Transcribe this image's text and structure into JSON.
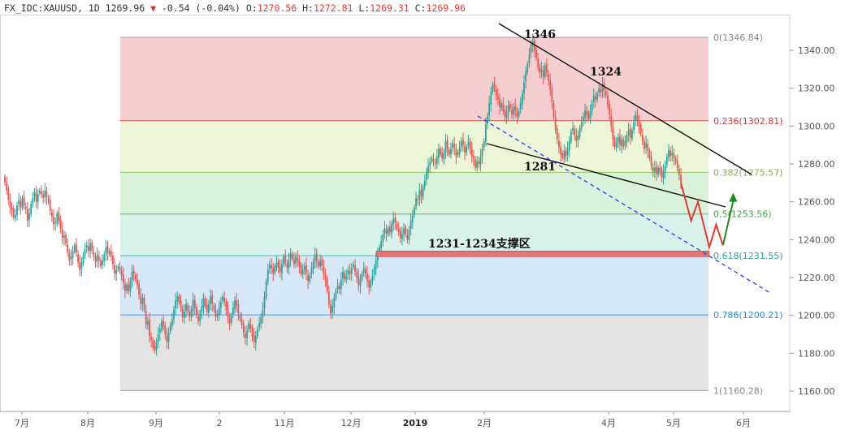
{
  "header": {
    "symbol": "FX_IDC:XAUUSD",
    "interval": "1D",
    "last": "1269.96",
    "change_icon": "down-triangle-icon",
    "change": "-0.54 (-0.04%)",
    "open_label": "O:",
    "open": "1270.56",
    "high_label": "H:",
    "high": "1272.81",
    "low_label": "L:",
    "low": "1269.31",
    "close_label": "C:",
    "close": "1269.96"
  },
  "chart_data": {
    "type": "candlestick",
    "ylim": [
      1150,
      1350
    ],
    "y_ticks": [
      1160,
      1180,
      1200,
      1220,
      1240,
      1260,
      1280,
      1300,
      1320,
      1340
    ],
    "y_tick_labels": [
      "1160.00",
      "1180.00",
      "1200.00",
      "1220.00",
      "1240.00",
      "1260.00",
      "1280.00",
      "1300.00",
      "1320.00",
      "1340.00"
    ],
    "x_tick_labels": [
      "7月",
      "8月",
      "9月",
      "2",
      "11月",
      "12月",
      "2019",
      "2月",
      "4月",
      "5月",
      "6月"
    ],
    "colors": {
      "up": "#26a69a",
      "down": "#ef5350",
      "forecast_down": "#e53935",
      "forecast_up": "#1b8a1b",
      "support": "#e57373"
    },
    "fibonacci": [
      {
        "level": "0",
        "price": 1346.84,
        "label": "0(1346.84)",
        "color": "#888888",
        "zone": "#f5cfcf"
      },
      {
        "level": "0.236",
        "price": 1302.81,
        "label": "0.236(1302.81)",
        "color": "#d32f2f",
        "zone": "#edf5d7"
      },
      {
        "level": "0.382",
        "price": 1275.57,
        "label": "0.382(1275.57)",
        "color": "#7cb342",
        "zone": "#d9f2d9"
      },
      {
        "level": "0.5",
        "price": 1253.56,
        "label": "0.5(1253.56)",
        "color": "#43a047",
        "zone": "#d9f2ec"
      },
      {
        "level": "0.618",
        "price": 1231.55,
        "label": "0.618(1231.55)",
        "color": "#26a69a",
        "zone": "#d6e8f5"
      },
      {
        "level": "0.786",
        "price": 1200.21,
        "label": "0.786(1200.21)",
        "color": "#1e88e5",
        "zone": "#e3e3e3"
      },
      {
        "level": "1",
        "price": 1160.28,
        "label": "1(1160.28)",
        "color": "#888888",
        "zone": null
      }
    ],
    "annotations": [
      {
        "text": "1346",
        "price": 1346
      },
      {
        "text": "1324",
        "price": 1324
      },
      {
        "text": "1281",
        "price": 1281
      },
      {
        "text": "1231-1234支撑区",
        "price": 1233
      }
    ],
    "support_zone": [
      1231,
      1234
    ],
    "closes": [
      1270,
      1266,
      1261,
      1257,
      1256,
      1252,
      1253,
      1258,
      1261,
      1257,
      1262,
      1258,
      1256,
      1250,
      1254,
      1259,
      1262,
      1265,
      1260,
      1264,
      1266,
      1264,
      1262,
      1266,
      1262,
      1260,
      1255,
      1252,
      1248,
      1249,
      1254,
      1250,
      1246,
      1241,
      1242,
      1238,
      1233,
      1229,
      1231,
      1234,
      1237,
      1233,
      1228,
      1224,
      1228,
      1232,
      1235,
      1237,
      1234,
      1238,
      1234,
      1231,
      1228,
      1232,
      1229,
      1226,
      1229,
      1232,
      1236,
      1233,
      1234,
      1231,
      1227,
      1222,
      1224,
      1226,
      1224,
      1221,
      1217,
      1213,
      1216,
      1213,
      1218,
      1223,
      1222,
      1219,
      1216,
      1211,
      1206,
      1209,
      1203,
      1195,
      1197,
      1189,
      1187,
      1183,
      1182,
      1186,
      1190,
      1193,
      1197,
      1194,
      1190,
      1186,
      1191,
      1195,
      1198,
      1203,
      1208,
      1210,
      1207,
      1204,
      1199,
      1202,
      1206,
      1202,
      1199,
      1203,
      1208,
      1204,
      1200,
      1197,
      1201,
      1205,
      1209,
      1205,
      1202,
      1206,
      1210,
      1206,
      1203,
      1199,
      1201,
      1204,
      1207,
      1210,
      1207,
      1203,
      1199,
      1196,
      1200,
      1204,
      1208,
      1205,
      1201,
      1198,
      1195,
      1191,
      1188,
      1192,
      1196,
      1193,
      1189,
      1186,
      1189,
      1193,
      1196,
      1199,
      1203,
      1210,
      1218,
      1224,
      1227,
      1225,
      1222,
      1226,
      1228,
      1225,
      1223,
      1227,
      1231,
      1228,
      1225,
      1229,
      1233,
      1230,
      1227,
      1231,
      1229,
      1226,
      1222,
      1224,
      1226,
      1222,
      1218,
      1221,
      1225,
      1228,
      1232,
      1229,
      1226,
      1229,
      1226,
      1222,
      1219,
      1213,
      1206,
      1201,
      1205,
      1209,
      1213,
      1216,
      1214,
      1219,
      1223,
      1219,
      1221,
      1224,
      1222,
      1225,
      1227,
      1223,
      1220,
      1216,
      1219,
      1222,
      1225,
      1222,
      1218,
      1215,
      1218,
      1221,
      1225,
      1229,
      1233,
      1236,
      1239,
      1243,
      1246,
      1243,
      1246,
      1244,
      1248,
      1251,
      1249,
      1246,
      1244,
      1241,
      1243,
      1246,
      1243,
      1240,
      1245,
      1250,
      1253,
      1257,
      1262,
      1261,
      1266,
      1263,
      1268,
      1271,
      1276,
      1279,
      1281,
      1283,
      1281,
      1280,
      1284,
      1288,
      1285,
      1283,
      1286,
      1292,
      1288,
      1285,
      1288,
      1291,
      1288,
      1284,
      1286,
      1289,
      1292,
      1290,
      1286,
      1289,
      1292,
      1288,
      1284,
      1283,
      1278,
      1281,
      1280,
      1284,
      1288,
      1292,
      1301,
      1305,
      1312,
      1318,
      1322,
      1320,
      1316,
      1314,
      1310,
      1312,
      1308,
      1305,
      1307,
      1311,
      1309,
      1306,
      1310,
      1308,
      1305,
      1308,
      1312,
      1317,
      1323,
      1329,
      1333,
      1338,
      1343,
      1345,
      1340,
      1336,
      1331,
      1328,
      1330,
      1326,
      1332,
      1328,
      1324,
      1319,
      1313,
      1305,
      1298,
      1293,
      1289,
      1285,
      1283,
      1287,
      1284,
      1288,
      1292,
      1297,
      1299,
      1295,
      1292,
      1295,
      1299,
      1302,
      1305,
      1308,
      1306,
      1304,
      1308,
      1312,
      1316,
      1314,
      1317,
      1320,
      1318,
      1322,
      1319,
      1316,
      1311,
      1306,
      1300,
      1293,
      1289,
      1291,
      1294,
      1290,
      1293,
      1289,
      1292,
      1295,
      1298,
      1294,
      1298,
      1302,
      1306,
      1303,
      1300,
      1296,
      1292,
      1288,
      1291,
      1287,
      1283,
      1279,
      1276,
      1278,
      1275,
      1278,
      1276,
      1273,
      1276,
      1279,
      1284,
      1287,
      1284,
      1286,
      1283,
      1281,
      1278,
      1274,
      1270
    ],
    "forecast_path_down": [
      [
        0,
        1270
      ],
      [
        0.45,
        1250
      ],
      [
        0.75,
        1260
      ],
      [
        1.25,
        1236
      ],
      [
        1.55,
        1248
      ],
      [
        1.85,
        1237
      ]
    ],
    "forecast_path_up": [
      [
        1.85,
        1237
      ],
      [
        2.3,
        1263
      ]
    ]
  }
}
